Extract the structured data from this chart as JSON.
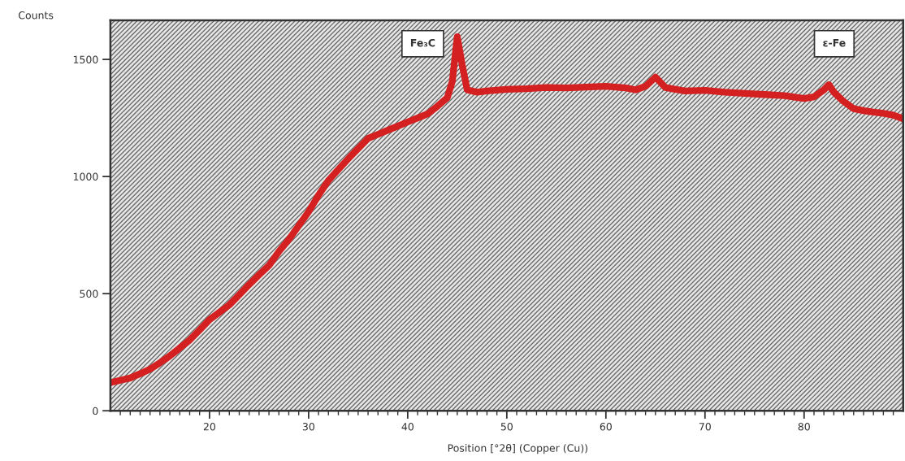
{
  "chart_data": {
    "type": "line",
    "xlabel": "Position [°2θ] (Copper (Cu))",
    "ylabel": "Counts",
    "x": [
      10,
      11,
      12,
      13,
      14,
      15,
      16,
      17,
      18,
      19,
      20,
      21,
      22,
      23,
      24,
      25,
      26,
      27,
      28,
      29,
      30,
      31,
      32,
      33,
      34,
      35,
      36,
      37,
      38,
      39,
      40,
      41,
      42,
      43,
      44,
      44.5,
      45,
      45.5,
      46,
      47,
      48,
      50,
      52,
      54,
      56,
      58,
      60,
      62,
      63,
      64,
      65,
      66,
      67,
      68,
      70,
      72,
      74,
      76,
      78,
      80,
      81,
      82,
      82.5,
      83,
      84,
      85,
      86,
      87,
      88,
      89,
      90
    ],
    "series": [
      {
        "color": "#d42020",
        "values": [
          120,
          130,
          140,
          158,
          178,
          205,
          234,
          268,
          302,
          345,
          389,
          420,
          452,
          495,
          539,
          580,
          620,
          680,
          731,
          790,
          850,
          920,
          983,
          1030,
          1076,
          1120,
          1163,
          1180,
          1198,
          1215,
          1233,
          1250,
          1267,
          1300,
          1337,
          1406,
          1597,
          1476,
          1370,
          1360,
          1365,
          1372,
          1375,
          1380,
          1378,
          1382,
          1385,
          1378,
          1370,
          1385,
          1424,
          1380,
          1372,
          1365,
          1368,
          1360,
          1355,
          1350,
          1345,
          1333,
          1340,
          1370,
          1392,
          1360,
          1320,
          1290,
          1281,
          1275,
          1270,
          1262,
          1246
        ]
      }
    ],
    "xlim": [
      10,
      90
    ],
    "ylim": [
      0,
      1667
    ],
    "xticks": [
      {
        "value": 11,
        "label": null
      },
      {
        "value": 12,
        "label": null
      },
      {
        "value": 13,
        "label": null
      },
      {
        "value": 14,
        "label": null
      },
      {
        "value": 15,
        "label": null
      },
      {
        "value": 16,
        "label": null
      },
      {
        "value": 17,
        "label": null
      },
      {
        "value": 18,
        "label": null
      },
      {
        "value": 19,
        "label": null
      },
      20,
      {
        "value": 21,
        "label": null
      },
      {
        "value": 22,
        "label": null
      },
      {
        "value": 23,
        "label": null
      },
      {
        "value": 24,
        "label": null
      },
      {
        "value": 25,
        "label": null
      },
      {
        "value": 26,
        "label": null
      },
      {
        "value": 27,
        "label": null
      },
      {
        "value": 28,
        "label": null
      },
      {
        "value": 29,
        "label": null
      },
      30,
      {
        "value": 31,
        "label": null
      },
      {
        "value": 32,
        "label": null
      },
      {
        "value": 33,
        "label": null
      },
      {
        "value": 34,
        "label": null
      },
      {
        "value": 35,
        "label": null
      },
      {
        "value": 36,
        "label": null
      },
      {
        "value": 37,
        "label": null
      },
      {
        "value": 38,
        "label": null
      },
      {
        "value": 39,
        "label": null
      },
      40,
      {
        "value": 41,
        "label": null
      },
      {
        "value": 42,
        "label": null
      },
      {
        "value": 43,
        "label": null
      },
      {
        "value": 44,
        "label": null
      },
      {
        "value": 45,
        "label": null
      },
      {
        "value": 46,
        "label": null
      },
      {
        "value": 47,
        "label": null
      },
      {
        "value": 48,
        "label": null
      },
      {
        "value": 49,
        "label": null
      },
      50,
      {
        "value": 51,
        "label": null
      },
      {
        "value": 52,
        "label": null
      },
      {
        "value": 53,
        "label": null
      },
      {
        "value": 54,
        "label": null
      },
      {
        "value": 55,
        "label": null
      },
      {
        "value": 56,
        "label": null
      },
      {
        "value": 57,
        "label": null
      },
      {
        "value": 58,
        "label": null
      },
      {
        "value": 59,
        "label": null
      },
      60,
      {
        "value": 61,
        "label": null
      },
      {
        "value": 62,
        "label": null
      },
      {
        "value": 63,
        "label": null
      },
      {
        "value": 64,
        "label": null
      },
      {
        "value": 65,
        "label": null
      },
      {
        "value": 66,
        "label": null
      },
      {
        "value": 67,
        "label": null
      },
      {
        "value": 68,
        "label": null
      },
      {
        "value": 69,
        "label": null
      },
      70,
      {
        "value": 71,
        "label": null
      },
      {
        "value": 72,
        "label": null
      },
      {
        "value": 73,
        "label": null
      },
      {
        "value": 74,
        "label": null
      },
      {
        "value": 75,
        "label": null
      },
      {
        "value": 76,
        "label": null
      },
      {
        "value": 77,
        "label": null
      },
      {
        "value": 78,
        "label": null
      },
      {
        "value": 79,
        "label": null
      },
      80,
      {
        "value": 81,
        "label": null
      },
      {
        "value": 82,
        "label": null
      },
      {
        "value": 83,
        "label": null
      },
      {
        "value": 84,
        "label": null
      },
      {
        "value": 85,
        "label": null
      },
      {
        "value": 86,
        "label": null
      },
      {
        "value": 87,
        "label": null
      },
      {
        "value": 88,
        "label": null
      },
      {
        "value": 89,
        "label": null
      }
    ],
    "yticks": [
      0,
      500,
      1000,
      1500
    ],
    "annotations": [
      "Fe₃C",
      "ε-Fe"
    ],
    "marker": "none",
    "line_style": "solid"
  }
}
